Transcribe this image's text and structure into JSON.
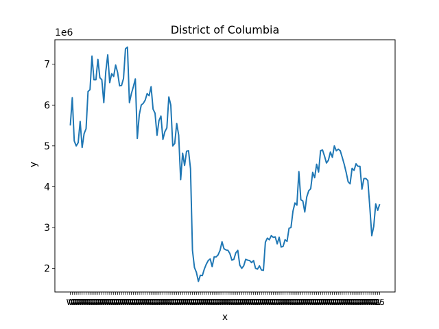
{
  "chart_data": {
    "type": "line",
    "title": "District of Columbia",
    "xlabel": "x",
    "ylabel": "y",
    "y_multiplier_label": "1e6",
    "ylim": [
      1.42,
      7.6
    ],
    "yticks": [
      2,
      3,
      4,
      5,
      6,
      7
    ],
    "ytick_labels": [
      "2",
      "3",
      "4",
      "5",
      "6",
      "7"
    ],
    "grid": false,
    "legend": "none",
    "color": "#1f77b4",
    "x_tick_labels_note": "dense, overlapping tick labels",
    "x_tick_labels_visible": [
      "W",
      "25"
    ],
    "series": [
      {
        "values": [
          5.5,
          6.18,
          5.12,
          5.0,
          5.08,
          5.6,
          4.96,
          5.3,
          5.42,
          6.33,
          6.38,
          7.2,
          6.62,
          6.62,
          7.12,
          6.67,
          6.62,
          6.06,
          6.82,
          7.23,
          6.55,
          6.77,
          6.7,
          6.98,
          6.8,
          6.47,
          6.48,
          6.65,
          7.38,
          7.42,
          6.06,
          6.28,
          6.45,
          6.64,
          5.18,
          5.76,
          6.0,
          6.04,
          6.12,
          6.28,
          6.23,
          6.45,
          5.9,
          5.8,
          5.26,
          5.62,
          5.73,
          5.16,
          5.35,
          5.44,
          6.2,
          6.0,
          5.0,
          5.06,
          5.55,
          5.26,
          4.17,
          4.82,
          4.52,
          4.87,
          4.88,
          4.44,
          2.44,
          2.02,
          1.9,
          1.68,
          1.83,
          1.82,
          1.98,
          2.1,
          2.19,
          2.23,
          2.04,
          2.28,
          2.28,
          2.33,
          2.44,
          2.65,
          2.48,
          2.45,
          2.44,
          2.36,
          2.2,
          2.22,
          2.38,
          2.44,
          2.08,
          2.0,
          2.06,
          2.22,
          2.2,
          2.19,
          2.14,
          2.19,
          2.0,
          1.98,
          2.06,
          1.96,
          1.95,
          2.64,
          2.74,
          2.7,
          2.8,
          2.76,
          2.77,
          2.6,
          2.76,
          2.52,
          2.54,
          2.7,
          2.66,
          2.98,
          3.0,
          3.4,
          3.6,
          3.55,
          4.37,
          3.68,
          3.65,
          3.38,
          3.75,
          3.9,
          3.95,
          4.35,
          4.22,
          4.55,
          4.36,
          4.88,
          4.9,
          4.75,
          4.58,
          4.65,
          4.85,
          4.72,
          5.0,
          4.88,
          4.92,
          4.88,
          4.72,
          4.55,
          4.35,
          4.12,
          4.07,
          4.45,
          4.4,
          4.56,
          4.5,
          4.5,
          3.94,
          4.2,
          4.2,
          4.15,
          3.5,
          2.8,
          3.03,
          3.58,
          3.42,
          3.57
        ]
      }
    ]
  }
}
